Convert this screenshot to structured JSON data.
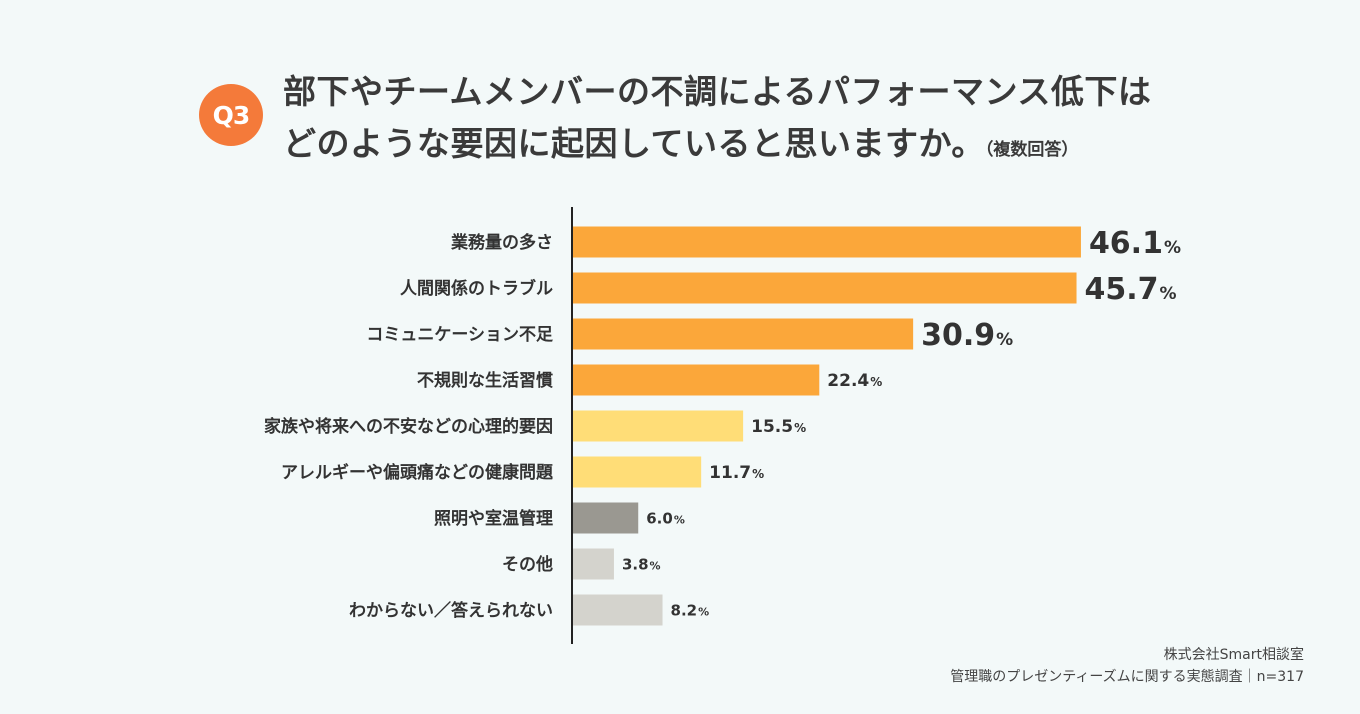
{
  "header": {
    "badge": "Q3",
    "title_line1": "部下やチームメンバーの不調によるパフォーマンス低下は",
    "title_line2": "どのような要因に起因していると思いますか。",
    "title_note": "（複数回答）"
  },
  "colors": {
    "badge": "#f47a3a",
    "orange": "#fba73a",
    "yellow": "#ffdd77",
    "dark_gray": "#9a9891",
    "light_gray": "#d4d3cd",
    "axis": "#222222"
  },
  "chart_data": {
    "type": "bar",
    "orientation": "horizontal",
    "unit": "%",
    "xlim": [
      0,
      50
    ],
    "categories": [
      "業務量の多さ",
      "人間関係のトラブル",
      "コミュニケーション不足",
      "不規則な生活習慣",
      "家族や将来への不安などの心理的要因",
      "アレルギーや偏頭痛などの健康問題",
      "照明や室温管理",
      "その他",
      "わからない／答えられない"
    ],
    "values": [
      46.1,
      45.7,
      30.9,
      22.4,
      15.5,
      11.7,
      6.0,
      3.8,
      8.2
    ],
    "value_labels": [
      "46.1",
      "45.7",
      "30.9",
      "22.4",
      "15.5",
      "11.7",
      "6.0",
      "3.8",
      "8.2"
    ],
    "bar_color_keys": [
      "orange",
      "orange",
      "orange",
      "orange",
      "yellow",
      "yellow",
      "dark_gray",
      "light_gray",
      "light_gray"
    ],
    "label_emphasis": [
      "large",
      "large",
      "large",
      "small",
      "small",
      "small",
      "tiny",
      "tiny",
      "tiny"
    ]
  },
  "footer": {
    "source_line1": "株式会社Smart相談室",
    "source_line2": "管理職のプレゼンティーズムに関する実態調査｜n=317"
  }
}
